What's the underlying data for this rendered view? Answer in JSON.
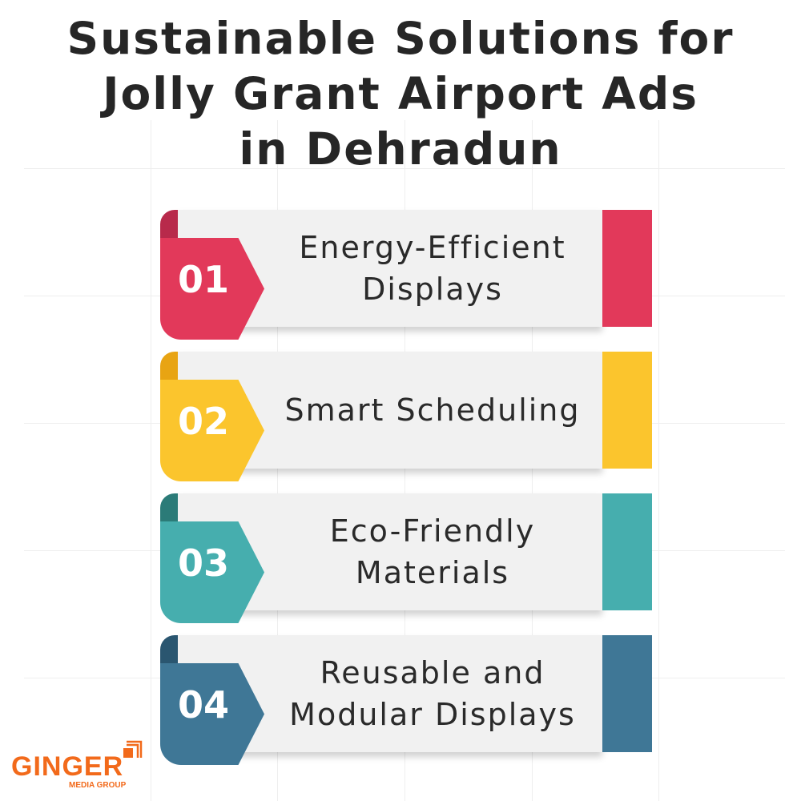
{
  "title": [
    "Sustainable Solutions for",
    "Jolly Grant Airport Ads",
    "in Dehradun"
  ],
  "items": [
    {
      "number": "01",
      "label": "Energy-Efficient Displays",
      "color": "#e2395a",
      "fold": "#b82a4b"
    },
    {
      "number": "02",
      "label": "Smart Scheduling",
      "color": "#fbc52d",
      "fold": "#e8a413"
    },
    {
      "number": "03",
      "label": "Eco-Friendly Materials",
      "color": "#46aeae",
      "fold": "#2b7b78"
    },
    {
      "number": "04",
      "label": "Reusable and Modular Displays",
      "color": "#3f7796",
      "fold": "#2a5670"
    }
  ],
  "logo": {
    "name": "GINGER",
    "sub": "MEDIA GROUP",
    "color": "#f26a1b"
  }
}
